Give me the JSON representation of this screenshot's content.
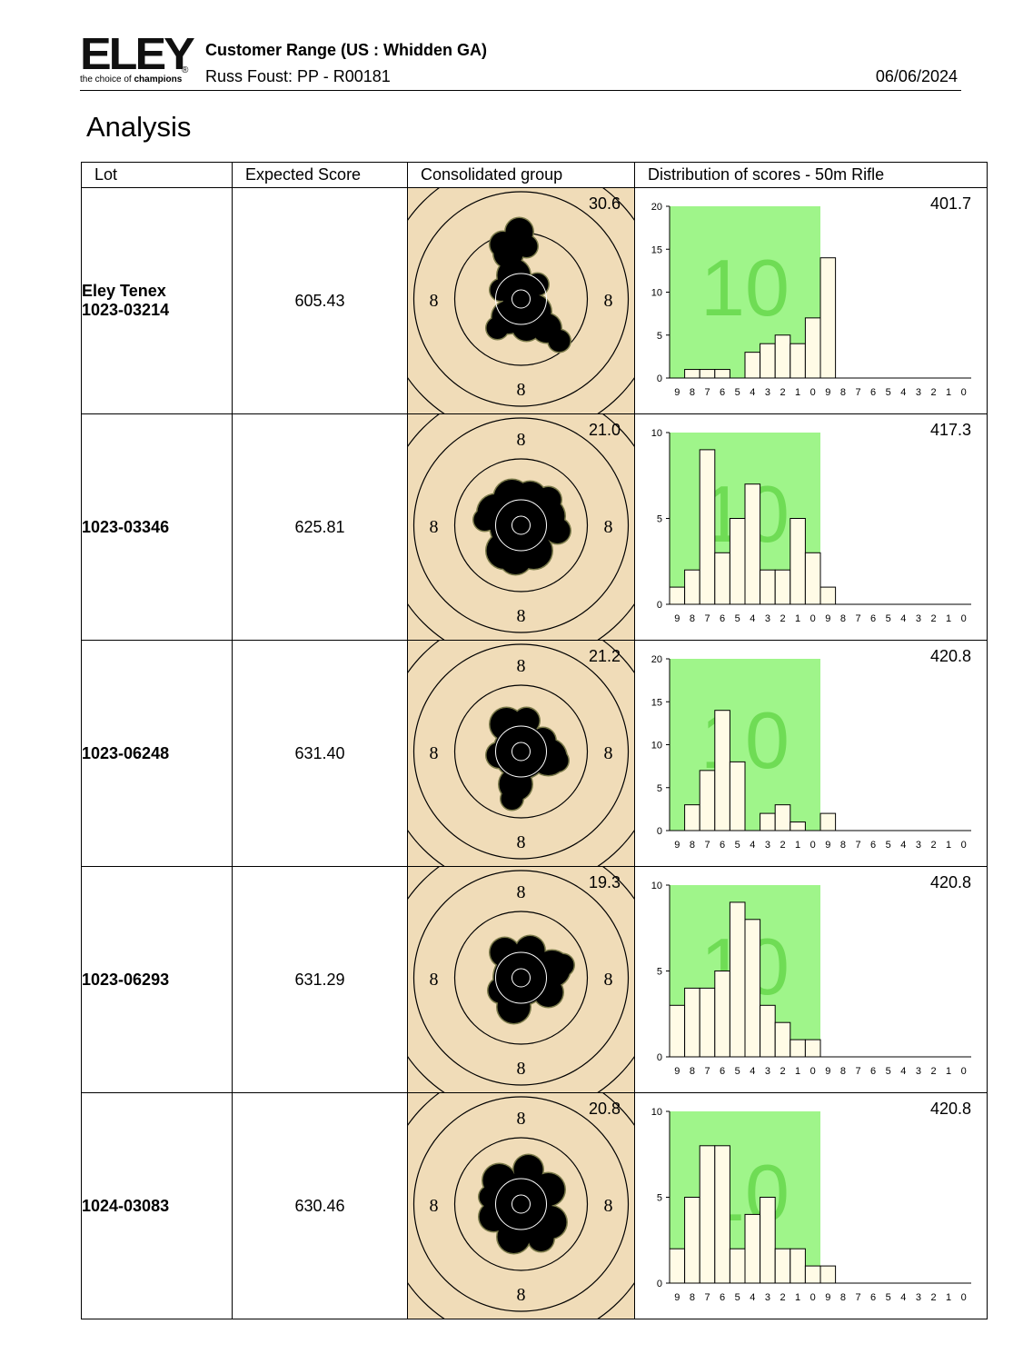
{
  "header": {
    "logo_word": "ELEY",
    "logo_reg": "®",
    "logo_tag_prefix": "the choice of ",
    "logo_tag_bold": "champions",
    "range": "Customer Range (US : Whidden GA)",
    "customer": "Russ Foust: PP - R00181",
    "date": "06/06/2024"
  },
  "title": "Analysis",
  "columns": [
    "Lot",
    "Expected Score",
    "Consolidated group",
    "Distribution of scores - 50m Rifle"
  ],
  "target_ring_label": "8",
  "hist_x_labels": [
    "9",
    "8",
    "7",
    "6",
    "5",
    "4",
    "3",
    "2",
    "1",
    "0",
    "9",
    "8",
    "7",
    "6",
    "5",
    "4",
    "3",
    "2",
    "1",
    "0"
  ],
  "rows": [
    {
      "lot_lines": [
        "Eley Tenex",
        "1023-03214"
      ],
      "expected_score": "605.43",
      "group_size": "30.6",
      "hist_total": "401.7",
      "watermark": "10",
      "chart_data": {
        "type": "bar",
        "categories": [
          "9",
          "8",
          "7",
          "6",
          "5",
          "4",
          "3",
          "2",
          "1",
          "0",
          "9",
          "8",
          "7",
          "6",
          "5",
          "4",
          "3",
          "2",
          "1",
          "0"
        ],
        "values": [
          0,
          1,
          1,
          1,
          0,
          3,
          4,
          5,
          4,
          7,
          14,
          0,
          0,
          0,
          0,
          0,
          0,
          0,
          0,
          0
        ],
        "ylim": [
          0,
          20
        ],
        "yticks": [
          0,
          5,
          10,
          15,
          20
        ],
        "highlight": "green band over score-10 bins"
      }
    },
    {
      "lot_lines": [
        "1023-03346"
      ],
      "expected_score": "625.81",
      "group_size": "21.0",
      "hist_total": "417.3",
      "watermark": "10",
      "chart_data": {
        "type": "bar",
        "categories": [
          "9",
          "8",
          "7",
          "6",
          "5",
          "4",
          "3",
          "2",
          "1",
          "0",
          "9",
          "8",
          "7",
          "6",
          "5",
          "4",
          "3",
          "2",
          "1",
          "0"
        ],
        "values": [
          1,
          2,
          9,
          3,
          5,
          7,
          2,
          2,
          5,
          3,
          1,
          0,
          0,
          0,
          0,
          0,
          0,
          0,
          0,
          0
        ],
        "ylim": [
          0,
          10
        ],
        "yticks": [
          0,
          5,
          10
        ],
        "highlight": "green band over score-10 bins"
      }
    },
    {
      "lot_lines": [
        "1023-06248"
      ],
      "expected_score": "631.40",
      "group_size": "21.2",
      "hist_total": "420.8",
      "watermark": "10",
      "chart_data": {
        "type": "bar",
        "categories": [
          "9",
          "8",
          "7",
          "6",
          "5",
          "4",
          "3",
          "2",
          "1",
          "0",
          "9",
          "8",
          "7",
          "6",
          "5",
          "4",
          "3",
          "2",
          "1",
          "0"
        ],
        "values": [
          0,
          3,
          7,
          14,
          8,
          0,
          2,
          3,
          1,
          0,
          2,
          0,
          0,
          0,
          0,
          0,
          0,
          0,
          0,
          0
        ],
        "ylim": [
          0,
          20
        ],
        "yticks": [
          0,
          5,
          10,
          15,
          20
        ],
        "highlight": "green band over score-10 bins"
      }
    },
    {
      "lot_lines": [
        "1023-06293"
      ],
      "expected_score": "631.29",
      "group_size": "19.3",
      "hist_total": "420.8",
      "watermark": "10",
      "chart_data": {
        "type": "bar",
        "categories": [
          "9",
          "8",
          "7",
          "6",
          "5",
          "4",
          "3",
          "2",
          "1",
          "0",
          "9",
          "8",
          "7",
          "6",
          "5",
          "4",
          "3",
          "2",
          "1",
          "0"
        ],
        "values": [
          3,
          4,
          4,
          5,
          9,
          8,
          3,
          2,
          1,
          1,
          0,
          0,
          0,
          0,
          0,
          0,
          0,
          0,
          0,
          0
        ],
        "ylim": [
          0,
          10
        ],
        "yticks": [
          0,
          5,
          10
        ],
        "highlight": "green band over score-10 bins"
      }
    },
    {
      "lot_lines": [
        "1024-03083"
      ],
      "expected_score": "630.46",
      "group_size": "20.8",
      "hist_total": "420.8",
      "watermark": "10",
      "chart_data": {
        "type": "bar",
        "categories": [
          "9",
          "8",
          "7",
          "6",
          "5",
          "4",
          "3",
          "2",
          "1",
          "0",
          "9",
          "8",
          "7",
          "6",
          "5",
          "4",
          "3",
          "2",
          "1",
          "0"
        ],
        "values": [
          2,
          5,
          8,
          8,
          2,
          4,
          5,
          2,
          2,
          1,
          1,
          0,
          0,
          0,
          0,
          0,
          0,
          0,
          0,
          0
        ],
        "ylim": [
          0,
          10
        ],
        "yticks": [
          0,
          5,
          10
        ],
        "highlight": "green band over score-10 bins"
      }
    }
  ],
  "colors": {
    "target_bg": "#f0dcb8",
    "group": "#000000",
    "green_band": "#9ff58a",
    "watermark": "#6fdc55",
    "bar_fill": "#fffbe6"
  }
}
